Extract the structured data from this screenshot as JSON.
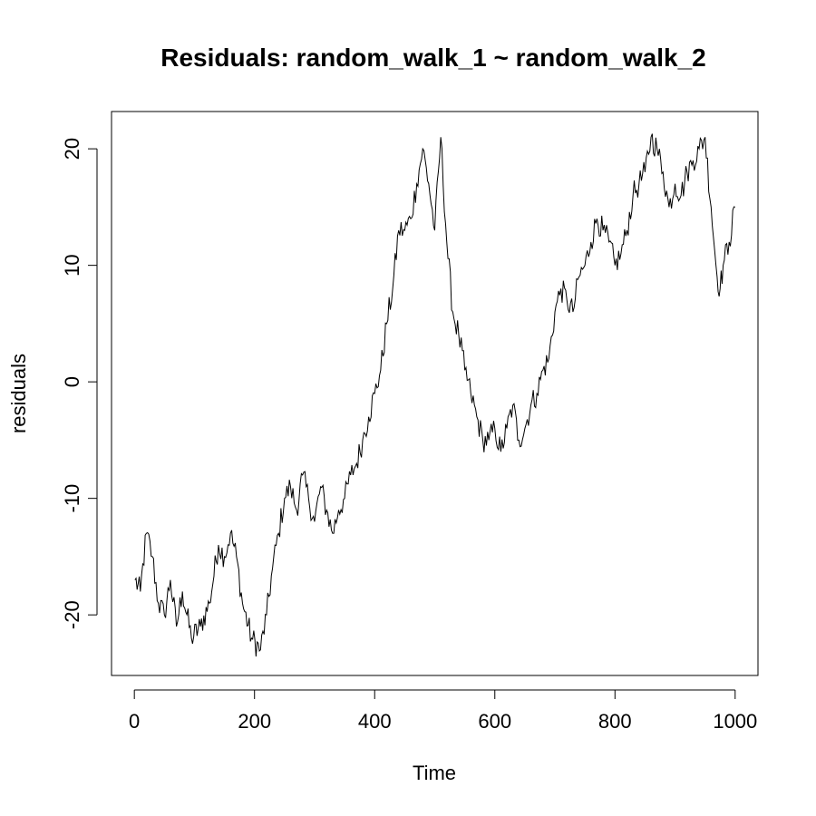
{
  "chart_data": {
    "type": "line",
    "title": "Residuals: random_walk_1 ~ random_walk_2",
    "xlabel": "Time",
    "ylabel": "residuals",
    "xlim": [
      -38,
      1038
    ],
    "ylim": [
      -25.2,
      23.2
    ],
    "x_ticks": [
      0,
      200,
      400,
      600,
      800,
      1000
    ],
    "x_tick_labels": [
      "0",
      "200",
      "400",
      "600",
      "800",
      "1000"
    ],
    "y_ticks": [
      -20,
      -10,
      0,
      10,
      20
    ],
    "y_tick_labels": [
      "-20",
      "-10",
      "0",
      "10",
      "20"
    ],
    "grid": false,
    "line_color": "#000000",
    "series": [
      {
        "x": [
          1,
          10,
          20,
          30,
          40,
          50,
          60,
          70,
          80,
          95,
          110,
          125,
          140,
          150,
          160,
          170,
          180,
          195,
          210,
          220,
          230,
          240,
          250,
          260,
          270,
          280,
          290,
          300,
          310,
          320,
          330,
          340,
          350,
          360,
          370,
          380,
          390,
          400,
          410,
          420,
          430,
          440,
          450,
          460,
          470,
          480,
          490,
          500,
          510,
          520,
          530,
          540,
          550,
          560,
          570,
          580,
          590,
          600,
          610,
          620,
          630,
          640,
          650,
          660,
          670,
          680,
          690,
          700,
          710,
          720,
          730,
          740,
          750,
          760,
          770,
          780,
          790,
          800,
          810,
          820,
          830,
          840,
          850,
          860,
          870,
          880,
          890,
          900,
          910,
          920,
          930,
          940,
          950,
          960,
          970,
          975,
          980,
          990,
          1000
        ],
        "y": [
          -17,
          -18,
          -13,
          -15,
          -19,
          -20,
          -17,
          -21,
          -18,
          -22,
          -21,
          -19,
          -14,
          -15,
          -13,
          -15,
          -19,
          -22,
          -23,
          -20,
          -16,
          -13,
          -10,
          -9,
          -11,
          -8,
          -10,
          -12,
          -9,
          -11,
          -13,
          -11,
          -10,
          -8,
          -7,
          -5,
          -3,
          -1,
          1,
          5,
          8,
          13,
          13,
          14,
          17,
          20,
          17,
          13,
          21,
          12,
          6,
          4,
          1,
          -1,
          -3,
          -5,
          -5,
          -4,
          -6,
          -4,
          -2,
          -5,
          -4,
          -2,
          -1,
          1,
          2,
          6,
          8,
          7,
          6,
          9,
          10,
          12,
          14,
          13,
          12,
          10,
          11,
          13,
          16,
          17,
          18,
          21,
          20,
          18,
          15,
          17,
          16,
          18,
          19,
          20,
          21,
          15,
          9,
          8,
          10,
          12,
          15
        ]
      }
    ]
  }
}
